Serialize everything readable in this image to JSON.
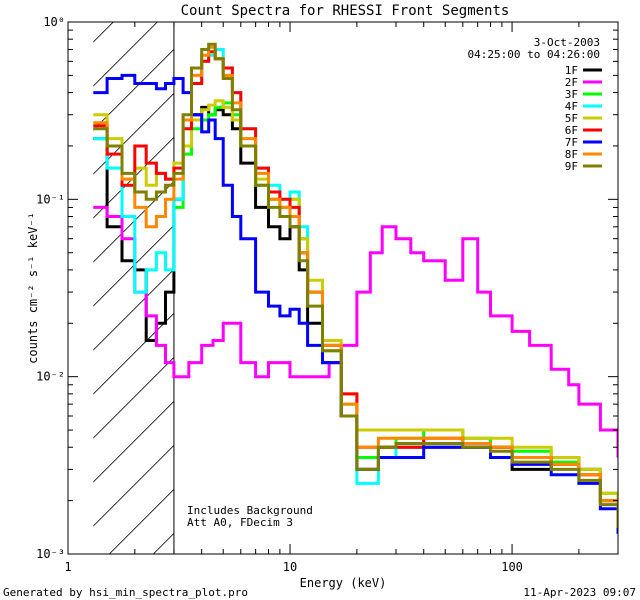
{
  "chart_data": {
    "type": "line",
    "title": "Count Spectra for RHESSI Front Segments",
    "xlabel": "Energy (keV)",
    "ylabel": "counts cm⁻² s⁻¹ keV⁻¹",
    "x_scale": "log",
    "y_scale": "log",
    "xlim": [
      1,
      300
    ],
    "ylim": [
      0.001,
      1
    ],
    "x_ticks": [
      {
        "value": 1,
        "label": "1"
      },
      {
        "value": 10,
        "label": "10"
      },
      {
        "value": 100,
        "label": "100"
      }
    ],
    "y_ticks": [
      {
        "value": 1,
        "label": "10⁰"
      },
      {
        "value": 0.1,
        "label": "10⁻¹"
      },
      {
        "value": 0.01,
        "label": "10⁻²"
      },
      {
        "value": 0.001,
        "label": "10⁻³"
      }
    ],
    "date": "3-Oct-2003",
    "time_range": "04:25:00 to 04:26:00",
    "annotations": [
      "Includes Background",
      "Att A0, FDecim 3"
    ],
    "shaded_region": {
      "x_from": 1.3,
      "x_to": 3.0,
      "style": "diagonal hatch"
    },
    "legend_position": "top-right",
    "footer_left": "Generated by hsi_min_spectra_plot.pro",
    "footer_right": "11-Apr-2023 09:07",
    "series": [
      {
        "name": "1F",
        "color": "#000000",
        "x": [
          1.3,
          1.5,
          1.75,
          2.0,
          2.25,
          2.5,
          2.75,
          3.0,
          3.3,
          3.6,
          4.0,
          4.3,
          4.6,
          5.0,
          5.5,
          6.0,
          7.0,
          8.0,
          9.0,
          10.0,
          11.0,
          12.0,
          14.0,
          17.0,
          20.0,
          25.0,
          30.0,
          40.0,
          60.0,
          80.0,
          100.0,
          150.0,
          200.0,
          250.0,
          300.0
        ],
        "values": [
          0.22,
          0.07,
          0.045,
          0.04,
          0.016,
          0.02,
          0.03,
          0.1,
          0.2,
          0.3,
          0.33,
          0.3,
          0.32,
          0.3,
          0.25,
          0.16,
          0.09,
          0.07,
          0.06,
          0.07,
          0.04,
          0.02,
          0.012,
          0.006,
          0.003,
          0.004,
          0.004,
          0.004,
          0.004,
          0.004,
          0.003,
          0.0035,
          0.003,
          0.002,
          0.0015
        ]
      },
      {
        "name": "2F",
        "color": "#ff00ff",
        "x": [
          1.3,
          1.5,
          1.75,
          2.0,
          2.25,
          2.5,
          2.75,
          3.0,
          3.5,
          4.0,
          4.5,
          5.0,
          6.0,
          7.0,
          8.0,
          10.0,
          12.0,
          15.0,
          17.0,
          20.0,
          23.0,
          26.0,
          30.0,
          35.0,
          40.0,
          50.0,
          60.0,
          70.0,
          80.0,
          100.0,
          120.0,
          150.0,
          180.0,
          200.0,
          250.0,
          300.0
        ],
        "values": [
          0.09,
          0.08,
          0.06,
          0.03,
          0.022,
          0.015,
          0.012,
          0.01,
          0.012,
          0.015,
          0.016,
          0.02,
          0.012,
          0.01,
          0.012,
          0.01,
          0.01,
          0.012,
          0.015,
          0.03,
          0.05,
          0.07,
          0.06,
          0.05,
          0.045,
          0.035,
          0.06,
          0.03,
          0.022,
          0.018,
          0.015,
          0.011,
          0.009,
          0.007,
          0.005,
          0.0035
        ]
      },
      {
        "name": "3F",
        "color": "#00ff00",
        "x": [
          3.0,
          3.3,
          3.6,
          4.0,
          4.3,
          4.6,
          5.0,
          5.5,
          6.0,
          7.0,
          8.0,
          9.0,
          10.0,
          11.0,
          12.0,
          14.0,
          17.0,
          20.0,
          25.0,
          30.0,
          40.0,
          60.0,
          80.0,
          100.0,
          150.0,
          200.0,
          250.0,
          300.0
        ],
        "values": [
          0.09,
          0.18,
          0.25,
          0.28,
          0.3,
          0.33,
          0.35,
          0.3,
          0.2,
          0.12,
          0.1,
          0.09,
          0.1,
          0.06,
          0.03,
          0.014,
          0.007,
          0.0035,
          0.004,
          0.0045,
          0.005,
          0.0045,
          0.004,
          0.0038,
          0.0033,
          0.003,
          0.0022,
          0.0016
        ]
      },
      {
        "name": "4F",
        "color": "#00ffff",
        "x": [
          1.3,
          1.5,
          1.75,
          2.0,
          2.25,
          2.5,
          2.75,
          3.0,
          3.3,
          3.6,
          4.0,
          4.3,
          4.6,
          5.0,
          5.5,
          6.0,
          7.0,
          8.0,
          9.0,
          10.0,
          11.0,
          12.0,
          14.0,
          17.0,
          20.0,
          25.0,
          30.0,
          40.0,
          60.0,
          80.0,
          100.0,
          150.0,
          200.0,
          250.0,
          300.0
        ],
        "values": [
          0.22,
          0.15,
          0.08,
          0.03,
          0.04,
          0.05,
          0.04,
          0.1,
          0.25,
          0.45,
          0.6,
          0.65,
          0.7,
          0.55,
          0.4,
          0.25,
          0.15,
          0.12,
          0.1,
          0.11,
          0.07,
          0.03,
          0.015,
          0.007,
          0.0025,
          0.0035,
          0.004,
          0.0042,
          0.0042,
          0.004,
          0.0035,
          0.0032,
          0.0028,
          0.002,
          0.0015
        ]
      },
      {
        "name": "5F",
        "color": "#cccc00",
        "x": [
          1.3,
          1.5,
          1.75,
          2.0,
          2.25,
          2.5,
          2.75,
          3.0,
          3.3,
          3.6,
          4.0,
          4.3,
          4.6,
          5.0,
          5.5,
          6.0,
          7.0,
          8.0,
          9.0,
          10.0,
          11.0,
          12.0,
          14.0,
          17.0,
          20.0,
          25.0,
          30.0,
          40.0,
          60.0,
          80.0,
          100.0,
          150.0,
          200.0,
          250.0,
          300.0
        ],
        "values": [
          0.3,
          0.22,
          0.13,
          0.15,
          0.12,
          0.14,
          0.13,
          0.16,
          0.2,
          0.28,
          0.32,
          0.34,
          0.36,
          0.33,
          0.28,
          0.2,
          0.13,
          0.1,
          0.09,
          0.1,
          0.06,
          0.035,
          0.016,
          0.008,
          0.005,
          0.005,
          0.005,
          0.005,
          0.0045,
          0.0045,
          0.004,
          0.0035,
          0.003,
          0.0022,
          0.0016
        ]
      },
      {
        "name": "6F",
        "color": "#ff0000",
        "x": [
          1.3,
          1.5,
          1.75,
          2.0,
          2.25,
          2.5,
          2.75,
          3.0,
          3.3,
          3.6,
          4.0,
          4.3,
          4.6,
          5.0,
          5.5,
          6.0,
          7.0,
          8.0,
          9.0,
          10.0,
          11.0,
          12.0,
          14.0,
          17.0,
          20.0,
          25.0,
          30.0,
          40.0,
          60.0,
          80.0,
          100.0,
          150.0,
          200.0,
          250.0,
          300.0
        ],
        "values": [
          0.26,
          0.18,
          0.12,
          0.2,
          0.16,
          0.14,
          0.13,
          0.15,
          0.25,
          0.45,
          0.6,
          0.68,
          0.62,
          0.55,
          0.4,
          0.25,
          0.15,
          0.11,
          0.1,
          0.09,
          0.05,
          0.03,
          0.015,
          0.008,
          0.004,
          0.004,
          0.004,
          0.0045,
          0.0042,
          0.004,
          0.0035,
          0.0032,
          0.0028,
          0.002,
          0.0015
        ]
      },
      {
        "name": "7F",
        "color": "#0000ff",
        "x": [
          1.3,
          1.5,
          1.75,
          2.0,
          2.25,
          2.5,
          2.75,
          3.0,
          3.3,
          3.6,
          4.0,
          4.3,
          4.6,
          5.0,
          5.5,
          6.0,
          7.0,
          8.0,
          9.0,
          10.0,
          11.0,
          12.0,
          14.0,
          17.0,
          20.0,
          25.0,
          30.0,
          40.0,
          60.0,
          80.0,
          100.0,
          150.0,
          200.0,
          250.0,
          300.0
        ],
        "values": [
          0.4,
          0.48,
          0.5,
          0.45,
          0.45,
          0.42,
          0.45,
          0.48,
          0.4,
          0.3,
          0.24,
          0.28,
          0.22,
          0.12,
          0.08,
          0.06,
          0.03,
          0.025,
          0.022,
          0.024,
          0.02,
          0.015,
          0.012,
          0.006,
          0.003,
          0.0035,
          0.0035,
          0.004,
          0.004,
          0.0035,
          0.0032,
          0.0028,
          0.0025,
          0.0018,
          0.0013
        ]
      },
      {
        "name": "8F",
        "color": "#ff8800",
        "x": [
          1.3,
          1.5,
          1.75,
          2.0,
          2.25,
          2.5,
          2.75,
          3.0,
          3.3,
          3.6,
          4.0,
          4.3,
          4.6,
          5.0,
          5.5,
          6.0,
          7.0,
          8.0,
          9.0,
          10.0,
          11.0,
          12.0,
          14.0,
          17.0,
          20.0,
          25.0,
          30.0,
          40.0,
          60.0,
          80.0,
          100.0,
          150.0,
          200.0,
          250.0,
          300.0
        ],
        "values": [
          0.27,
          0.2,
          0.13,
          0.09,
          0.07,
          0.08,
          0.1,
          0.13,
          0.28,
          0.5,
          0.65,
          0.72,
          0.62,
          0.5,
          0.35,
          0.22,
          0.14,
          0.1,
          0.09,
          0.08,
          0.05,
          0.03,
          0.015,
          0.007,
          0.004,
          0.0045,
          0.0045,
          0.0045,
          0.0042,
          0.004,
          0.0035,
          0.0032,
          0.0028,
          0.002,
          0.0015
        ]
      },
      {
        "name": "9F",
        "color": "#808000",
        "x": [
          1.3,
          1.5,
          1.75,
          2.0,
          2.25,
          2.5,
          2.75,
          3.0,
          3.3,
          3.6,
          4.0,
          4.3,
          4.6,
          5.0,
          5.5,
          6.0,
          7.0,
          8.0,
          9.0,
          10.0,
          11.0,
          12.0,
          14.0,
          17.0,
          20.0,
          25.0,
          30.0,
          40.0,
          60.0,
          80.0,
          100.0,
          150.0,
          200.0,
          250.0,
          300.0
        ],
        "values": [
          0.25,
          0.2,
          0.14,
          0.11,
          0.1,
          0.11,
          0.12,
          0.14,
          0.3,
          0.55,
          0.7,
          0.75,
          0.62,
          0.48,
          0.32,
          0.2,
          0.12,
          0.09,
          0.08,
          0.07,
          0.045,
          0.025,
          0.014,
          0.006,
          0.003,
          0.004,
          0.0042,
          0.0042,
          0.004,
          0.0038,
          0.0033,
          0.003,
          0.0026,
          0.0019,
          0.0014
        ]
      }
    ]
  }
}
